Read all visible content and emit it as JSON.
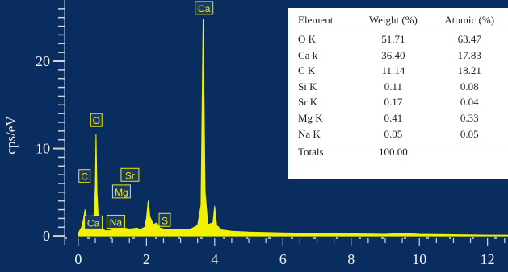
{
  "chart_data": {
    "type": "line",
    "ylabel": "cps/eV",
    "xlim": [
      -0.4,
      12.6
    ],
    "ylim": [
      -1.0,
      27.0
    ],
    "x_ticks": [
      0,
      2,
      4,
      6,
      8,
      10,
      12
    ],
    "y_ticks": [
      0,
      10,
      20
    ],
    "spectrum": [
      [
        0.0,
        0.3
      ],
      [
        0.1,
        1.0
      ],
      [
        0.15,
        1.8
      ],
      [
        0.2,
        3.0
      ],
      [
        0.25,
        1.4
      ],
      [
        0.3,
        2.2
      ],
      [
        0.35,
        0.8
      ],
      [
        0.4,
        0.6
      ],
      [
        0.45,
        1.6
      ],
      [
        0.5,
        5.5
      ],
      [
        0.52,
        11.6
      ],
      [
        0.55,
        5.0
      ],
      [
        0.6,
        1.2
      ],
      [
        0.7,
        0.8
      ],
      [
        0.8,
        0.6
      ],
      [
        0.9,
        0.6
      ],
      [
        1.0,
        0.7
      ],
      [
        1.04,
        1.2
      ],
      [
        1.1,
        0.8
      ],
      [
        1.2,
        1.1
      ],
      [
        1.25,
        1.5
      ],
      [
        1.35,
        0.9
      ],
      [
        1.5,
        0.8
      ],
      [
        1.74,
        0.9
      ],
      [
        1.8,
        0.7
      ],
      [
        1.95,
        1.0
      ],
      [
        2.0,
        2.0
      ],
      [
        2.05,
        4.0
      ],
      [
        2.1,
        2.2
      ],
      [
        2.2,
        1.3
      ],
      [
        2.3,
        1.5
      ],
      [
        2.4,
        0.9
      ],
      [
        2.6,
        0.7
      ],
      [
        3.0,
        0.7
      ],
      [
        3.3,
        0.8
      ],
      [
        3.5,
        1.2
      ],
      [
        3.6,
        3.5
      ],
      [
        3.66,
        24.8
      ],
      [
        3.72,
        5.0
      ],
      [
        3.8,
        1.3
      ],
      [
        3.95,
        1.5
      ],
      [
        4.0,
        3.4
      ],
      [
        4.06,
        1.2
      ],
      [
        4.2,
        0.7
      ],
      [
        4.5,
        0.55
      ],
      [
        5.0,
        0.45
      ],
      [
        6.0,
        0.35
      ],
      [
        7.0,
        0.3
      ],
      [
        8.0,
        0.25
      ],
      [
        9.0,
        0.2
      ],
      [
        9.5,
        0.3
      ],
      [
        10.0,
        0.2
      ],
      [
        11.0,
        0.15
      ],
      [
        12.0,
        0.1
      ],
      [
        12.6,
        0.1
      ]
    ],
    "peak_labels": [
      {
        "label": "Ca",
        "x": 3.69,
        "y": 24.8
      },
      {
        "label": "O",
        "x": 0.53,
        "y": 11.6
      },
      {
        "label": "C",
        "x": 0.28,
        "y": 5.2
      },
      {
        "label": "Sr",
        "x": 1.8,
        "y": 5.7
      },
      {
        "label": "Mg",
        "x": 1.22,
        "y": 3.8
      },
      {
        "label": "Ca",
        "x": 0.3,
        "y": 2.1
      },
      {
        "label": "Na",
        "x": 0.96,
        "y": 2.0
      },
      {
        "label": "S",
        "x": 2.3,
        "y": 2.2
      }
    ],
    "colors": {
      "background": "#0a2d60",
      "spectrum": "#f2f200",
      "axis": "#d0d6e0",
      "tick_text": "#f2f2f2",
      "label_box": "#f0e800",
      "label_bg": "#1a3a68"
    }
  },
  "table": {
    "headers": [
      "Element",
      "Weight (%)",
      "Atomic (%)"
    ],
    "rows": [
      [
        "O K",
        "51.71",
        "63.47"
      ],
      [
        "Ca k",
        "36.40",
        "17.83"
      ],
      [
        "C K",
        "11.14",
        "18.21"
      ],
      [
        "Si K",
        "0.11",
        "0.08"
      ],
      [
        "Sr K",
        "0.17",
        "0.04"
      ],
      [
        "Mg K",
        "0.41",
        "0.33"
      ],
      [
        "Na K",
        "0.05",
        "0.05"
      ]
    ],
    "totals": [
      "Totals",
      "100.00",
      ""
    ]
  }
}
